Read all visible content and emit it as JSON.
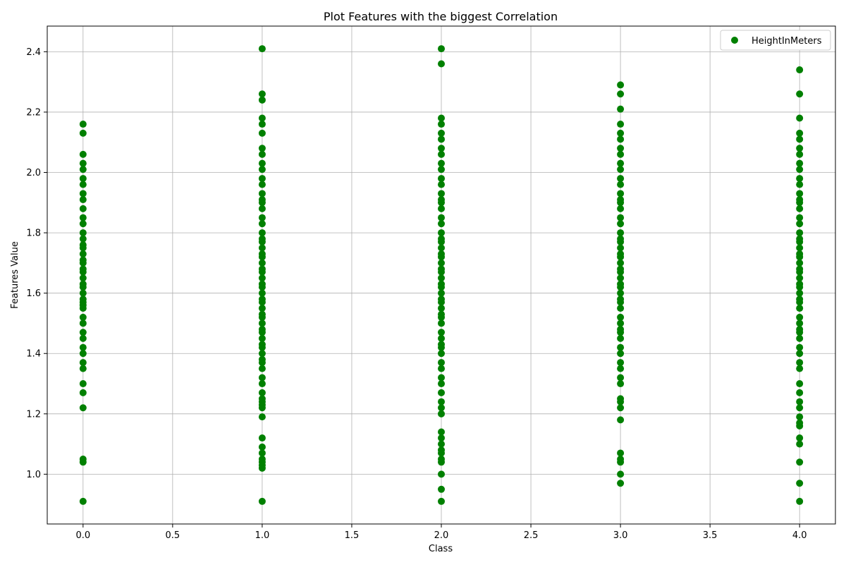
{
  "chart_data": {
    "type": "scatter",
    "title": "Plot Features with the biggest Correlation",
    "xlabel": "Class",
    "ylabel": "Features Value",
    "xlim": [
      -0.2,
      4.2
    ],
    "ylim": [
      0.835,
      2.485
    ],
    "xticks": [
      0.0,
      0.5,
      1.0,
      1.5,
      2.0,
      2.5,
      3.0,
      3.5,
      4.0
    ],
    "xtick_labels": [
      "0.0",
      "0.5",
      "1.0",
      "1.5",
      "2.0",
      "2.5",
      "3.0",
      "3.5",
      "4.0"
    ],
    "yticks": [
      1.0,
      1.2,
      1.4,
      1.6,
      1.8,
      2.0,
      2.2,
      2.4
    ],
    "ytick_labels": [
      "1.0",
      "1.2",
      "1.4",
      "1.6",
      "1.8",
      "2.0",
      "2.2",
      "2.4"
    ],
    "grid": true,
    "legend_position": "top-right",
    "series": [
      {
        "name": "HeightInMeters",
        "color": "#008000",
        "groups": [
          {
            "x": 0,
            "y": [
              0.91,
              1.04,
              1.05,
              1.22,
              1.27,
              1.3,
              1.35,
              1.37,
              1.4,
              1.42,
              1.45,
              1.47,
              1.5,
              1.52,
              1.55,
              1.56,
              1.57,
              1.58,
              1.6,
              1.62,
              1.63,
              1.65,
              1.67,
              1.68,
              1.7,
              1.71,
              1.73,
              1.75,
              1.76,
              1.78,
              1.8,
              1.83,
              1.85,
              1.88,
              1.91,
              1.93,
              1.96,
              1.98,
              2.01,
              2.03,
              2.06,
              2.13,
              2.16
            ]
          },
          {
            "x": 1,
            "y": [
              0.91,
              1.02,
              1.03,
              1.04,
              1.05,
              1.07,
              1.09,
              1.12,
              1.19,
              1.22,
              1.23,
              1.24,
              1.25,
              1.27,
              1.3,
              1.32,
              1.35,
              1.37,
              1.38,
              1.4,
              1.42,
              1.43,
              1.45,
              1.47,
              1.48,
              1.5,
              1.52,
              1.53,
              1.55,
              1.57,
              1.58,
              1.6,
              1.62,
              1.63,
              1.65,
              1.67,
              1.68,
              1.7,
              1.72,
              1.73,
              1.75,
              1.77,
              1.78,
              1.8,
              1.83,
              1.85,
              1.88,
              1.9,
              1.91,
              1.93,
              1.96,
              1.98,
              2.01,
              2.03,
              2.06,
              2.08,
              2.13,
              2.16,
              2.18,
              2.24,
              2.26,
              2.41
            ]
          },
          {
            "x": 2,
            "y": [
              0.91,
              0.95,
              1.0,
              1.04,
              1.05,
              1.07,
              1.08,
              1.1,
              1.12,
              1.14,
              1.2,
              1.22,
              1.24,
              1.27,
              1.3,
              1.32,
              1.35,
              1.37,
              1.4,
              1.42,
              1.43,
              1.45,
              1.47,
              1.5,
              1.52,
              1.53,
              1.55,
              1.57,
              1.58,
              1.6,
              1.62,
              1.63,
              1.65,
              1.67,
              1.68,
              1.7,
              1.72,
              1.73,
              1.75,
              1.77,
              1.78,
              1.8,
              1.83,
              1.85,
              1.88,
              1.9,
              1.91,
              1.93,
              1.96,
              1.98,
              2.01,
              2.03,
              2.06,
              2.08,
              2.11,
              2.13,
              2.16,
              2.18,
              2.36,
              2.41
            ]
          },
          {
            "x": 3,
            "y": [
              0.97,
              1.0,
              1.04,
              1.05,
              1.07,
              1.18,
              1.22,
              1.24,
              1.25,
              1.3,
              1.32,
              1.35,
              1.37,
              1.4,
              1.42,
              1.45,
              1.47,
              1.48,
              1.5,
              1.52,
              1.55,
              1.57,
              1.58,
              1.6,
              1.62,
              1.63,
              1.65,
              1.67,
              1.68,
              1.7,
              1.72,
              1.73,
              1.75,
              1.77,
              1.78,
              1.8,
              1.83,
              1.85,
              1.88,
              1.9,
              1.91,
              1.93,
              1.96,
              1.98,
              2.01,
              2.03,
              2.06,
              2.08,
              2.11,
              2.13,
              2.16,
              2.21,
              2.26,
              2.29
            ]
          },
          {
            "x": 4,
            "y": [
              0.91,
              0.97,
              1.04,
              1.1,
              1.12,
              1.16,
              1.17,
              1.19,
              1.22,
              1.24,
              1.27,
              1.3,
              1.35,
              1.37,
              1.4,
              1.42,
              1.45,
              1.47,
              1.48,
              1.5,
              1.52,
              1.55,
              1.57,
              1.58,
              1.6,
              1.62,
              1.63,
              1.65,
              1.67,
              1.68,
              1.7,
              1.72,
              1.73,
              1.75,
              1.77,
              1.78,
              1.8,
              1.83,
              1.85,
              1.88,
              1.9,
              1.91,
              1.93,
              1.96,
              1.98,
              2.01,
              2.03,
              2.06,
              2.08,
              2.11,
              2.13,
              2.18,
              2.26,
              2.34
            ]
          }
        ]
      }
    ]
  }
}
